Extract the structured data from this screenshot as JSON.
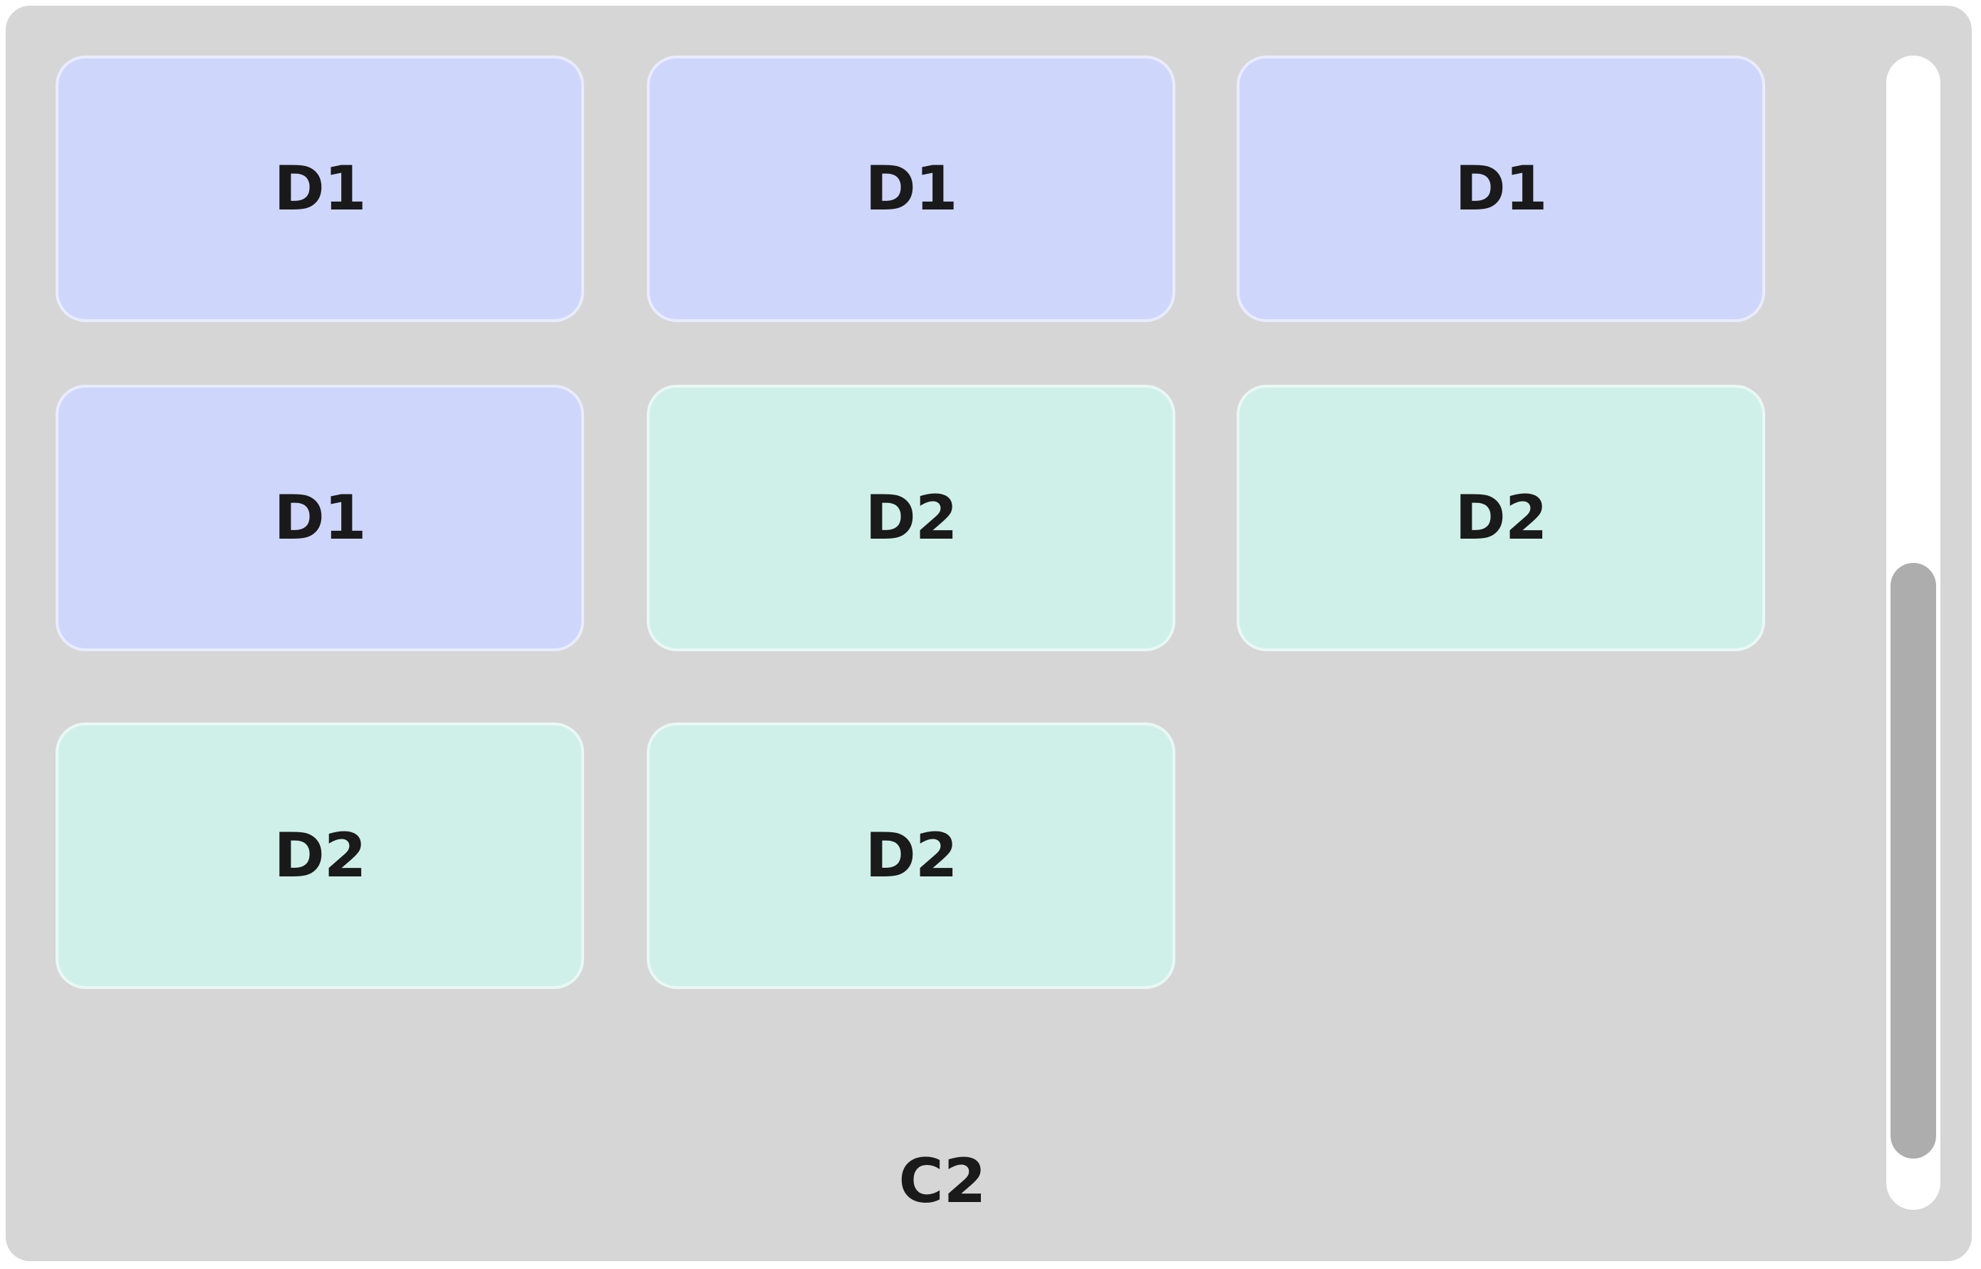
{
  "container": {
    "label": "C2"
  },
  "cards": [
    {
      "label": "D1",
      "group": "D1"
    },
    {
      "label": "D1",
      "group": "D1"
    },
    {
      "label": "D1",
      "group": "D1"
    },
    {
      "label": "D1",
      "group": "D1"
    },
    {
      "label": "D2",
      "group": "D2"
    },
    {
      "label": "D2",
      "group": "D2"
    },
    {
      "label": "D2",
      "group": "D2"
    },
    {
      "label": "D2",
      "group": "D2"
    }
  ],
  "colors": {
    "panel": "#d6d6d6",
    "d1": "#cfd6fc",
    "d2": "#cff0e8",
    "scroll_track": "#ffffff",
    "scroll_thumb": "#adadad"
  },
  "scroll": {
    "position_fraction": 0.44,
    "visible_fraction": 0.52
  }
}
